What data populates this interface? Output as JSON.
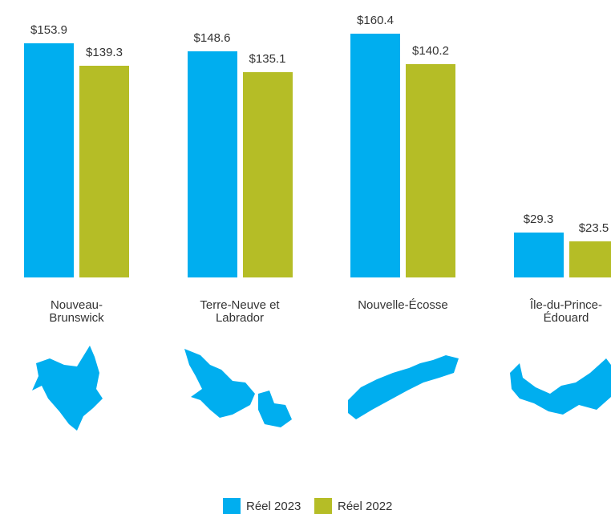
{
  "chart_data": {
    "type": "bar",
    "categories": [
      "Nouveau-Brunswick",
      "Terre-Neuve et Labrador",
      "Nouvelle-Écosse",
      "Île-du-Prince-Édouard"
    ],
    "series": [
      {
        "name": "Réel 2023",
        "color": "#00aeef",
        "values": [
          153.9,
          148.6,
          160.4,
          29.3
        ],
        "value_labels": [
          "$153.9",
          "$148.6",
          "$160.4",
          "$29.3"
        ]
      },
      {
        "name": "Réel 2022",
        "color": "#b5bd26",
        "values": [
          139.3,
          135.1,
          140.2,
          23.5
        ],
        "value_labels": [
          "$139.3",
          "$135.1",
          "$140.2",
          "$23.5"
        ]
      }
    ],
    "legend": "bottom"
  }
}
